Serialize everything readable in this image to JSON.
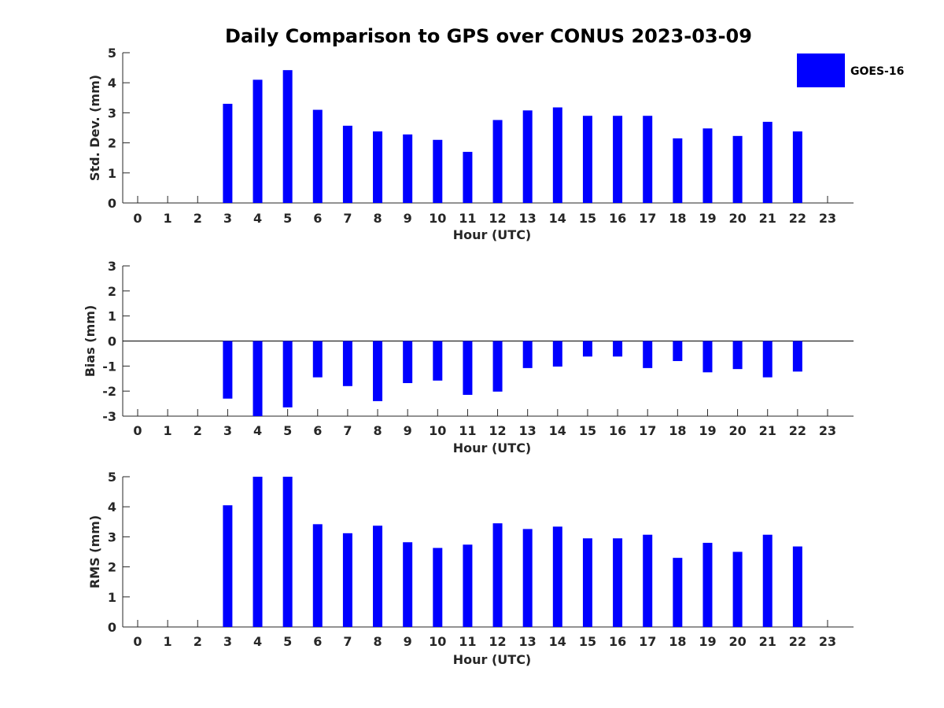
{
  "title": "Daily Comparison to GPS over CONUS 2023-03-09",
  "legend": {
    "label": "GOES-16",
    "color": "#0000ff"
  },
  "chart_data": [
    {
      "type": "bar",
      "categories": [
        "0",
        "1",
        "2",
        "3",
        "4",
        "5",
        "6",
        "7",
        "8",
        "9",
        "10",
        "11",
        "12",
        "13",
        "14",
        "15",
        "16",
        "17",
        "18",
        "19",
        "20",
        "21",
        "22",
        "23"
      ],
      "series": [
        {
          "name": "GOES-16",
          "values": [
            null,
            null,
            null,
            3.3,
            4.1,
            4.42,
            3.1,
            2.57,
            2.38,
            2.28,
            2.1,
            1.7,
            2.76,
            3.08,
            3.18,
            2.9,
            2.9,
            2.9,
            2.15,
            2.48,
            2.23,
            2.7,
            2.38,
            null
          ]
        }
      ],
      "xlabel": "Hour (UTC)",
      "ylabel": "Std. Dev. (mm)",
      "ylim": [
        0,
        5
      ],
      "yticks": [
        "0",
        "1",
        "2",
        "3",
        "4",
        "5"
      ],
      "grid": false,
      "legend_position": "top-right"
    },
    {
      "type": "bar",
      "categories": [
        "0",
        "1",
        "2",
        "3",
        "4",
        "5",
        "6",
        "7",
        "8",
        "9",
        "10",
        "11",
        "12",
        "13",
        "14",
        "15",
        "16",
        "17",
        "18",
        "19",
        "20",
        "21",
        "22",
        "23"
      ],
      "series": [
        {
          "name": "GOES-16",
          "values": [
            null,
            null,
            null,
            -2.3,
            -3.0,
            -2.65,
            -1.45,
            -1.8,
            -2.4,
            -1.68,
            -1.58,
            -2.15,
            -2.02,
            -1.08,
            -1.02,
            -0.62,
            -0.62,
            -1.08,
            -0.8,
            -1.25,
            -1.12,
            -1.45,
            -1.22,
            null
          ]
        }
      ],
      "xlabel": "Hour (UTC)",
      "ylabel": "Bias (mm)",
      "ylim": [
        -3,
        3
      ],
      "yticks": [
        "-3",
        "-2",
        "-1",
        "0",
        "1",
        "2",
        "3"
      ],
      "grid": false
    },
    {
      "type": "bar",
      "categories": [
        "0",
        "1",
        "2",
        "3",
        "4",
        "5",
        "6",
        "7",
        "8",
        "9",
        "10",
        "11",
        "12",
        "13",
        "14",
        "15",
        "16",
        "17",
        "18",
        "19",
        "20",
        "21",
        "22",
        "23"
      ],
      "series": [
        {
          "name": "GOES-16",
          "values": [
            null,
            null,
            null,
            4.05,
            5.0,
            5.0,
            3.42,
            3.12,
            3.37,
            2.82,
            2.63,
            2.74,
            3.45,
            3.26,
            3.34,
            2.95,
            2.95,
            3.07,
            2.3,
            2.8,
            2.5,
            3.07,
            2.68,
            null
          ]
        }
      ],
      "xlabel": "Hour (UTC)",
      "ylabel": "RMS (mm)",
      "ylim": [
        0,
        5
      ],
      "yticks": [
        "0",
        "1",
        "2",
        "3",
        "4",
        "5"
      ],
      "grid": false
    }
  ]
}
